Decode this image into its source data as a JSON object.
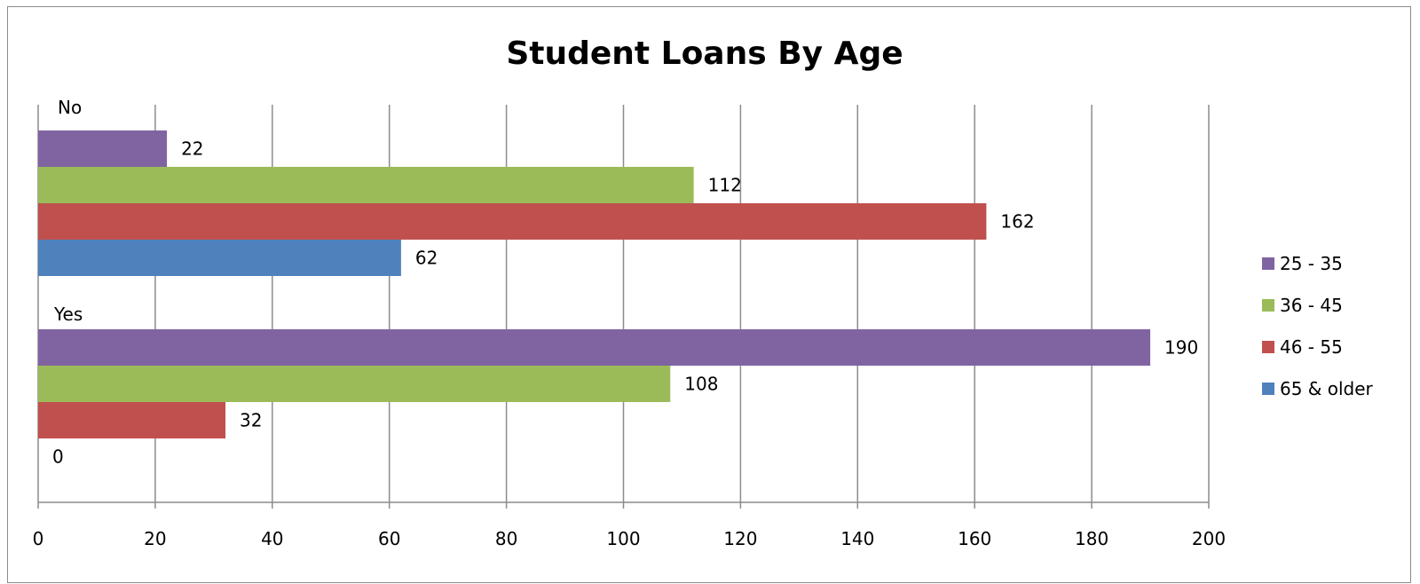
{
  "chart_data": {
    "type": "bar",
    "orientation": "horizontal",
    "title": "Student Loans By Age",
    "xlabel": "",
    "ylabel": "",
    "xlim": [
      0,
      200
    ],
    "x_ticks": [
      0,
      20,
      40,
      60,
      80,
      100,
      120,
      140,
      160,
      180,
      200
    ],
    "categories": [
      "No",
      "Yes"
    ],
    "series": [
      {
        "name": "25 - 35",
        "color": "#8064A2",
        "values": [
          22,
          190
        ]
      },
      {
        "name": "36 - 45",
        "color": "#9BBB59",
        "values": [
          112,
          108
        ]
      },
      {
        "name": "46 - 55",
        "color": "#C0504D",
        "values": [
          162,
          32
        ]
      },
      {
        "name": "65 & older",
        "color": "#4F81BD",
        "values": [
          62,
          0
        ]
      }
    ],
    "grid": true,
    "legend_position": "right"
  }
}
